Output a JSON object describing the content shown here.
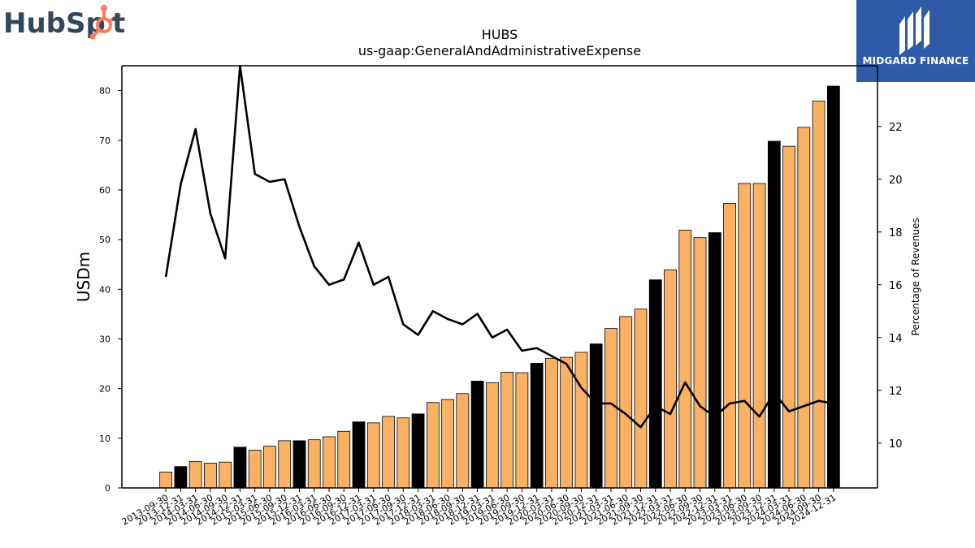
{
  "logos": {
    "left_text": "HubSpot",
    "right_text": "MIDGARD FINANCE"
  },
  "colors": {
    "bar_default": "#fbb163",
    "bar_highlight": "#000000",
    "line": "#000000",
    "hubspot_dark": "#33475b",
    "hubspot_orange": "#ff7a59",
    "midgard_blue": "#2e5aa8"
  },
  "chart_data": {
    "type": "bar",
    "title": "HUBS",
    "subtitle": "us-gaap:GeneralAndAdministrativeExpense",
    "ylabel": "USDm",
    "y2label": "Percentage of Revenues",
    "ylim": [
      0,
      85
    ],
    "y2lim": [
      8.3,
      24.3
    ],
    "yticks": [
      0,
      10,
      20,
      30,
      40,
      50,
      60,
      70,
      80
    ],
    "y2ticks": [
      10,
      12,
      14,
      16,
      18,
      20,
      22
    ],
    "grid": false,
    "categories": [
      "2013-09-30",
      "2013-12-31",
      "2014-03-31",
      "2014-06-30",
      "2014-09-30",
      "2014-12-31",
      "2015-03-31",
      "2015-06-30",
      "2015-09-30",
      "2015-12-31",
      "2016-03-31",
      "2016-06-30",
      "2016-09-30",
      "2016-12-31",
      "2017-03-31",
      "2017-06-30",
      "2017-09-30",
      "2017-12-31",
      "2018-03-31",
      "2018-06-30",
      "2018-09-30",
      "2018-12-31",
      "2019-03-31",
      "2019-06-30",
      "2019-09-30",
      "2019-12-31",
      "2020-03-31",
      "2020-06-30",
      "2020-09-30",
      "2020-12-31",
      "2021-03-31",
      "2021-06-30",
      "2021-09-30",
      "2021-12-31",
      "2022-03-31",
      "2022-06-30",
      "2022-09-30",
      "2022-12-31",
      "2023-03-31",
      "2023-06-30",
      "2023-09-30",
      "2023-12-31",
      "2024-03-31",
      "2024-06-30",
      "2024-09-30",
      "2024-12-31"
    ],
    "series": [
      {
        "type": "bar",
        "axis": "left",
        "values": [
          3.2,
          4.3,
          5.3,
          5.0,
          5.2,
          8.2,
          7.6,
          8.4,
          9.5,
          9.5,
          9.7,
          10.3,
          11.4,
          13.3,
          13.1,
          14.4,
          14.1,
          14.9,
          17.2,
          17.8,
          19.0,
          21.5,
          21.2,
          23.3,
          23.2,
          25.1,
          26.1,
          26.3,
          27.3,
          29.0,
          32.1,
          34.5,
          36.0,
          41.9,
          43.9,
          51.9,
          50.4,
          51.4,
          57.3,
          61.3,
          61.3,
          69.8,
          68.8,
          72.6,
          77.9,
          80.9
        ],
        "highlight": [
          false,
          true,
          false,
          false,
          false,
          true,
          false,
          false,
          false,
          true,
          false,
          false,
          false,
          true,
          false,
          false,
          false,
          true,
          false,
          false,
          false,
          true,
          false,
          false,
          false,
          true,
          false,
          false,
          false,
          true,
          false,
          false,
          false,
          true,
          false,
          false,
          false,
          true,
          false,
          false,
          false,
          true,
          false,
          false,
          false,
          true
        ]
      },
      {
        "type": "line",
        "axis": "right",
        "values": [
          16.3,
          19.8,
          21.9,
          18.7,
          17.0,
          24.3,
          20.2,
          19.9,
          20.0,
          18.2,
          16.7,
          16.0,
          16.2,
          17.6,
          16.0,
          16.3,
          14.5,
          14.1,
          15.0,
          14.7,
          14.5,
          14.9,
          14.0,
          14.3,
          13.5,
          13.6,
          13.3,
          13.0,
          12.1,
          11.5,
          11.5,
          11.1,
          10.6,
          11.4,
          11.1,
          12.3,
          11.4,
          11.0,
          11.5,
          11.6,
          11.0,
          11.9,
          11.2,
          11.4,
          11.6,
          11.5
        ]
      }
    ]
  }
}
